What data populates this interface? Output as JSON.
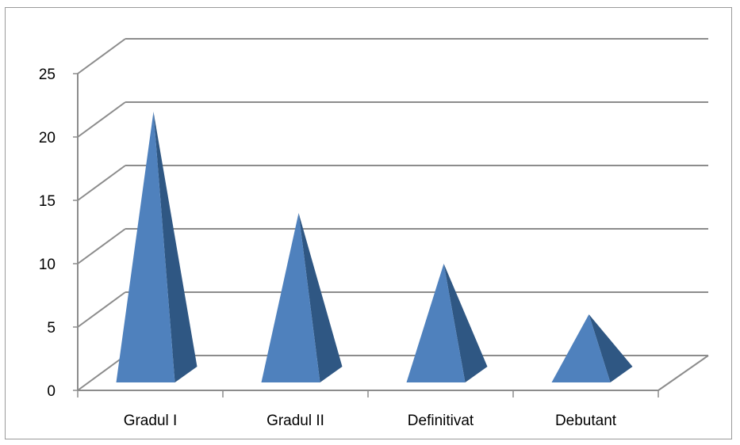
{
  "chart_data": {
    "type": "bar",
    "mark": "pyramid-3d",
    "categories": [
      "Gradul  I",
      "Gradul II",
      "Definitivat",
      "Debutant"
    ],
    "values": [
      22,
      14,
      10,
      6
    ],
    "ylim": [
      0,
      25
    ],
    "yticks": [
      0,
      5,
      10,
      15,
      20,
      25
    ],
    "title": "",
    "xlabel": "",
    "ylabel": "",
    "grid": true,
    "legend": "none",
    "colors": {
      "front": "#4f81bd",
      "side": "#2f5783",
      "grid": "#8c8c8c"
    }
  }
}
